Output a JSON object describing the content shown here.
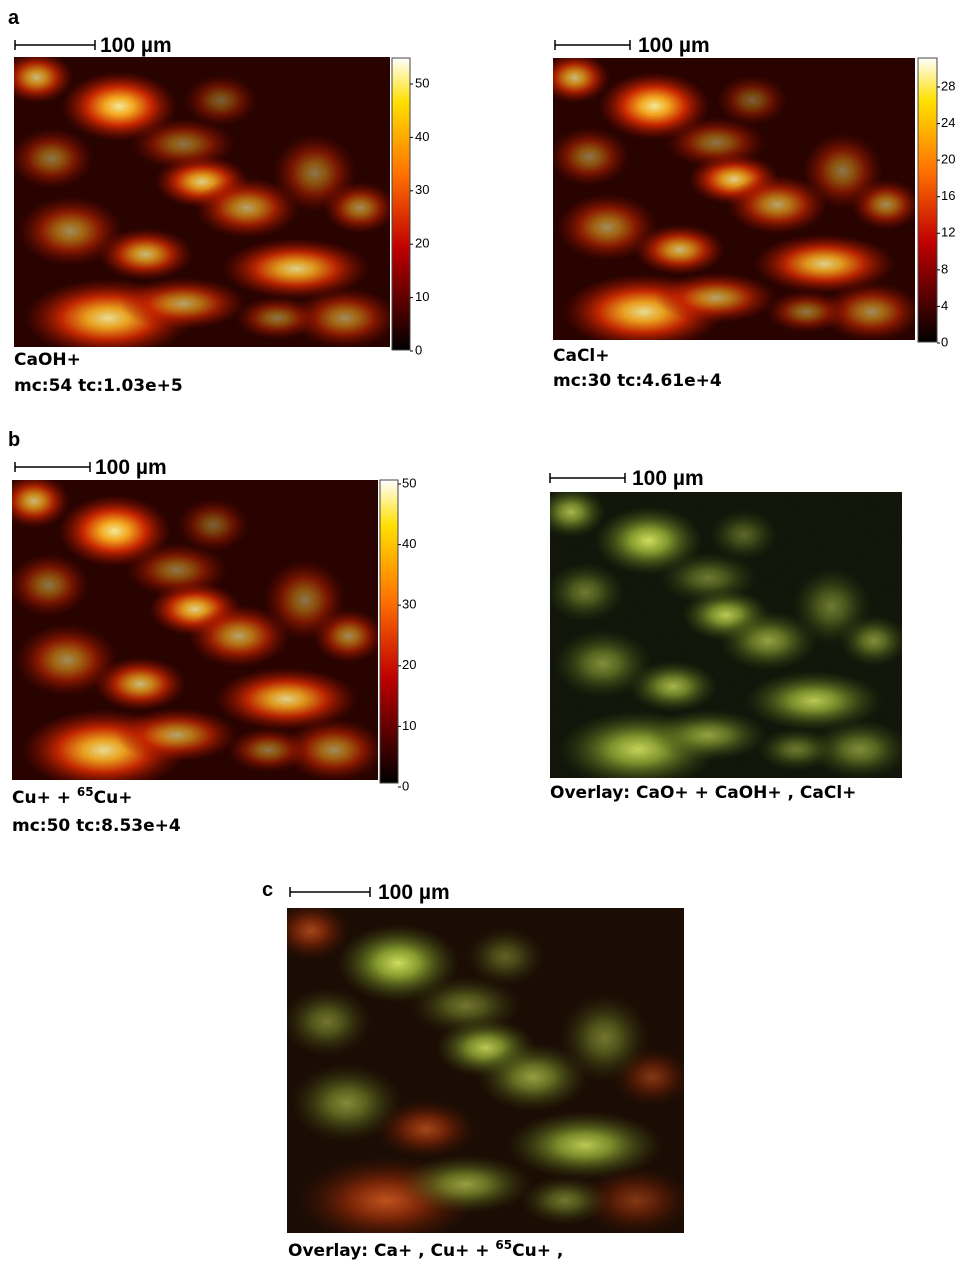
{
  "panel_letters": [
    "a",
    "b",
    "c"
  ],
  "images": [
    {
      "scale_label": "100 µm",
      "colorbar_ticks": [
        0,
        10,
        20,
        30,
        40,
        50
      ],
      "caption": [
        [
          "CaOH+"
        ],
        [
          "mc:54 tc:1.03e+5"
        ]
      ]
    },
    {
      "scale_label": "100 µm",
      "colorbar_ticks": [
        0,
        4,
        8,
        12,
        16,
        20,
        24,
        28
      ],
      "caption": [
        [
          "CaCl+"
        ],
        [
          "mc:30 tc:4.61e+4"
        ]
      ]
    },
    {
      "scale_label": "100 µm",
      "colorbar_ticks": [
        0,
        10,
        20,
        30,
        40,
        50
      ],
      "caption": [
        [
          "Cu+ + ",
          "65",
          "Cu+"
        ],
        [
          "mc:50 tc:8.53e+4"
        ]
      ]
    },
    {
      "scale_label": "100 µm",
      "caption": [
        [
          "Overlay: CaO+ + CaOH+ , CaCl+"
        ]
      ]
    },
    {
      "scale_label": "100 µm",
      "caption": [
        [
          "Overlay: Ca+ , Cu+ + ",
          "65",
          "Cu+ ,"
        ]
      ]
    }
  ]
}
